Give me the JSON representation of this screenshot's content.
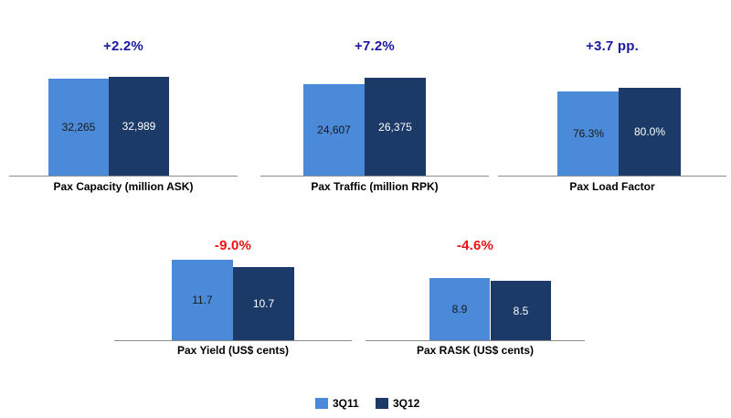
{
  "colors": {
    "series1": "#4a8ad8",
    "series2": "#1b3a68",
    "positive": "#1a1aa0",
    "negative": "#ee1111"
  },
  "legend": [
    "3Q11",
    "3Q12"
  ],
  "chart_data": [
    {
      "type": "bar",
      "categories": [
        "3Q11",
        "3Q12"
      ],
      "values": [
        32265,
        32989
      ],
      "value_labels": [
        "32,265",
        "32,989"
      ],
      "change": "+2.2%",
      "change_sign": "positive",
      "xlabel": "Pax Capacity (million ASK)"
    },
    {
      "type": "bar",
      "categories": [
        "3Q11",
        "3Q12"
      ],
      "values": [
        24607,
        26375
      ],
      "value_labels": [
        "24,607",
        "26,375"
      ],
      "change": "+7.2%",
      "change_sign": "positive",
      "xlabel": "Pax Traffic (million RPK)"
    },
    {
      "type": "bar",
      "categories": [
        "3Q11",
        "3Q12"
      ],
      "values": [
        76.3,
        80.0
      ],
      "value_labels": [
        "76.3%",
        "80.0%"
      ],
      "change": "+3.7 pp.",
      "change_sign": "positive",
      "xlabel": "Pax Load Factor"
    },
    {
      "type": "bar",
      "categories": [
        "3Q11",
        "3Q12"
      ],
      "values": [
        11.7,
        10.7
      ],
      "value_labels": [
        "11.7",
        "10.7"
      ],
      "change": "-9.0%",
      "change_sign": "negative",
      "xlabel": "Pax Yield (US$ cents)"
    },
    {
      "type": "bar",
      "categories": [
        "3Q11",
        "3Q12"
      ],
      "values": [
        8.9,
        8.5
      ],
      "value_labels": [
        "8.9",
        "8.5"
      ],
      "change": "-4.6%",
      "change_sign": "negative",
      "xlabel": "Pax RASK (US$ cents)"
    }
  ]
}
